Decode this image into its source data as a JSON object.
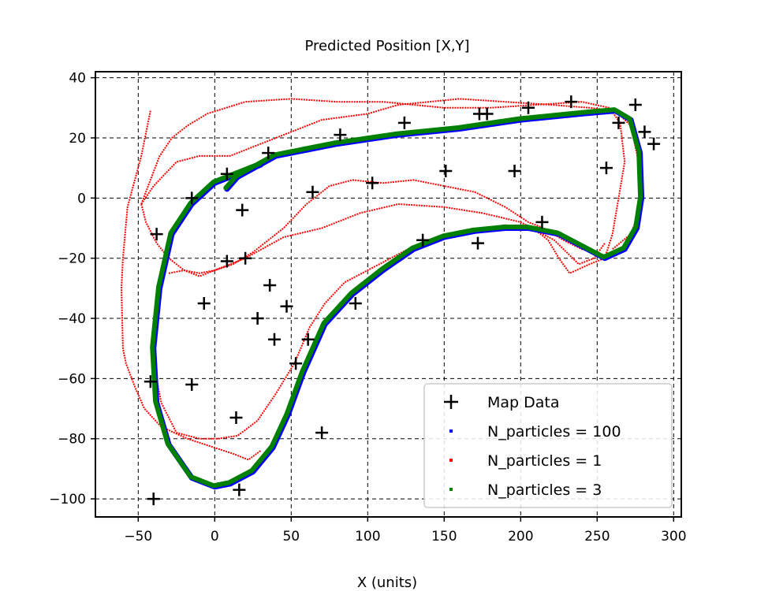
{
  "chart_data": {
    "type": "line",
    "title": "Predicted Position [X,Y]",
    "xlabel": "X (units)",
    "ylabel": "",
    "xlim": [
      -78,
      305
    ],
    "ylim": [
      -106,
      42
    ],
    "xticks": [
      -50,
      0,
      50,
      100,
      150,
      200,
      250,
      300
    ],
    "yticks": [
      -100,
      -80,
      -60,
      -40,
      -20,
      0,
      20,
      40
    ],
    "grid": true,
    "legend_position": "lower-right",
    "map_data": {
      "name": "Map Data",
      "marker": "plus",
      "color": "#000000",
      "points": [
        [
          -40,
          -100
        ],
        [
          -38,
          -12
        ],
        [
          -42,
          -61
        ],
        [
          -15,
          0
        ],
        [
          -15,
          -62
        ],
        [
          -7,
          -35
        ],
        [
          8,
          8
        ],
        [
          8,
          -21
        ],
        [
          14,
          -73
        ],
        [
          16,
          -97
        ],
        [
          18,
          -4
        ],
        [
          20,
          -20
        ],
        [
          28,
          -40
        ],
        [
          35,
          15
        ],
        [
          36,
          -29
        ],
        [
          39,
          -47
        ],
        [
          47,
          -36
        ],
        [
          53,
          -55
        ],
        [
          61,
          -47
        ],
        [
          64,
          2
        ],
        [
          70,
          -78
        ],
        [
          82,
          21
        ],
        [
          92,
          -35
        ],
        [
          103,
          5
        ],
        [
          124,
          25
        ],
        [
          136,
          -14
        ],
        [
          151,
          9
        ],
        [
          172,
          -15
        ],
        [
          173,
          28
        ],
        [
          178,
          28
        ],
        [
          196,
          9
        ],
        [
          205,
          30
        ],
        [
          214,
          -8
        ],
        [
          233,
          32
        ],
        [
          256,
          10
        ],
        [
          264,
          25
        ],
        [
          275,
          31
        ],
        [
          281,
          22
        ],
        [
          287,
          18
        ]
      ]
    },
    "series": [
      {
        "name": "N_particles = 100",
        "color": "#0000ff"
      },
      {
        "name": "N_particles = 1",
        "color": "#ff0000"
      },
      {
        "name": "N_particles = 3",
        "color": "#008000"
      }
    ],
    "estimated_tracks": {
      "main_loop": [
        [
          8,
          3
        ],
        [
          15,
          7
        ],
        [
          40,
          14
        ],
        [
          80,
          18
        ],
        [
          120,
          21
        ],
        [
          160,
          23
        ],
        [
          200,
          26
        ],
        [
          240,
          28
        ],
        [
          262,
          29
        ],
        [
          272,
          26
        ],
        [
          278,
          15
        ],
        [
          279,
          0
        ],
        [
          276,
          -10
        ],
        [
          268,
          -17
        ],
        [
          255,
          -20
        ],
        [
          240,
          -16
        ],
        [
          225,
          -12
        ],
        [
          205,
          -10
        ],
        [
          190,
          -10
        ],
        [
          170,
          -11
        ],
        [
          150,
          -13
        ],
        [
          130,
          -17
        ],
        [
          110,
          -24
        ],
        [
          90,
          -32
        ],
        [
          72,
          -42
        ],
        [
          58,
          -58
        ],
        [
          48,
          -72
        ],
        [
          38,
          -83
        ],
        [
          25,
          -91
        ],
        [
          10,
          -95
        ],
        [
          0,
          -96
        ],
        [
          -15,
          -93
        ],
        [
          -30,
          -82
        ],
        [
          -38,
          -68
        ],
        [
          -40,
          -50
        ],
        [
          -36,
          -30
        ],
        [
          -28,
          -12
        ],
        [
          -15,
          -2
        ],
        [
          0,
          5
        ],
        [
          15,
          8
        ],
        [
          30,
          11
        ]
      ],
      "n1_runs": [
        [
          [
            -42,
            29
          ],
          [
            -48,
            14
          ],
          [
            -57,
            -3
          ],
          [
            -60,
            -20
          ],
          [
            -61,
            -30
          ],
          [
            -60,
            -50
          ],
          [
            -58,
            -55
          ],
          [
            -52,
            -63
          ],
          [
            -46,
            -70
          ],
          [
            -35,
            -76
          ],
          [
            -18,
            -80
          ],
          [
            0,
            -83
          ],
          [
            12,
            -85
          ],
          [
            22,
            -87
          ],
          [
            30,
            -84
          ]
        ],
        [
          [
            -48,
            -2
          ],
          [
            -42,
            6
          ],
          [
            -36,
            14
          ],
          [
            -28,
            20
          ],
          [
            -18,
            24
          ],
          [
            -5,
            28
          ],
          [
            20,
            32
          ],
          [
            50,
            33
          ],
          [
            80,
            32
          ],
          [
            110,
            32
          ],
          [
            130,
            31
          ],
          [
            150,
            30
          ],
          [
            180,
            30
          ],
          [
            210,
            31
          ],
          [
            240,
            32
          ],
          [
            258,
            30
          ],
          [
            265,
            25
          ],
          [
            268,
            12
          ],
          [
            264,
            0
          ],
          [
            260,
            -12
          ],
          [
            255,
            -20
          ],
          [
            245,
            -22
          ],
          [
            232,
            -25
          ],
          [
            225,
            -20
          ],
          [
            218,
            -14
          ],
          [
            208,
            -10
          ]
        ],
        [
          [
            -48,
            -2
          ],
          [
            -40,
            4
          ],
          [
            -25,
            12
          ],
          [
            -10,
            14
          ],
          [
            10,
            14
          ],
          [
            40,
            20
          ],
          [
            70,
            26
          ],
          [
            100,
            28
          ],
          [
            120,
            31
          ],
          [
            140,
            32
          ],
          [
            160,
            33
          ],
          [
            190,
            32
          ],
          [
            220,
            31
          ],
          [
            245,
            30
          ],
          [
            262,
            29
          ],
          [
            272,
            24
          ],
          [
            278,
            10
          ],
          [
            277,
            -5
          ],
          [
            272,
            -12
          ],
          [
            260,
            -17
          ]
        ],
        [
          [
            -48,
            -2
          ],
          [
            -45,
            -8
          ],
          [
            -38,
            -15
          ],
          [
            -30,
            -20
          ],
          [
            -20,
            -24
          ],
          [
            -10,
            -25
          ],
          [
            0,
            -24
          ],
          [
            12,
            -22
          ],
          [
            25,
            -18
          ],
          [
            35,
            -14
          ],
          [
            45,
            -10
          ],
          [
            60,
            -2
          ],
          [
            75,
            4
          ],
          [
            90,
            6
          ],
          [
            110,
            5
          ],
          [
            130,
            6
          ],
          [
            150,
            4
          ],
          [
            170,
            2
          ],
          [
            190,
            -3
          ],
          [
            205,
            -8
          ],
          [
            215,
            -10
          ],
          [
            228,
            -14
          ],
          [
            240,
            -17
          ],
          [
            255,
            -19
          ]
        ],
        [
          [
            -40,
            -55
          ],
          [
            -35,
            -68
          ],
          [
            -25,
            -78
          ],
          [
            -10,
            -80
          ],
          [
            2,
            -80
          ],
          [
            15,
            -79
          ],
          [
            28,
            -74
          ],
          [
            40,
            -65
          ],
          [
            52,
            -55
          ],
          [
            62,
            -43
          ],
          [
            72,
            -35
          ],
          [
            85,
            -28
          ],
          [
            100,
            -24
          ],
          [
            115,
            -20
          ],
          [
            130,
            -16
          ],
          [
            145,
            -13
          ],
          [
            160,
            -11
          ],
          [
            175,
            -10
          ],
          [
            190,
            -9
          ],
          [
            200,
            -10
          ]
        ],
        [
          [
            -30,
            -25
          ],
          [
            -20,
            -24
          ],
          [
            -10,
            -26
          ],
          [
            0,
            -24
          ],
          [
            20,
            -20
          ],
          [
            45,
            -13
          ],
          [
            70,
            -10
          ],
          [
            95,
            -5
          ],
          [
            120,
            -2
          ],
          [
            150,
            -3
          ],
          [
            175,
            -5
          ],
          [
            200,
            -8
          ],
          [
            222,
            -14
          ],
          [
            238,
            -22
          ],
          [
            248,
            -20
          ],
          [
            255,
            -15
          ]
        ]
      ]
    }
  }
}
